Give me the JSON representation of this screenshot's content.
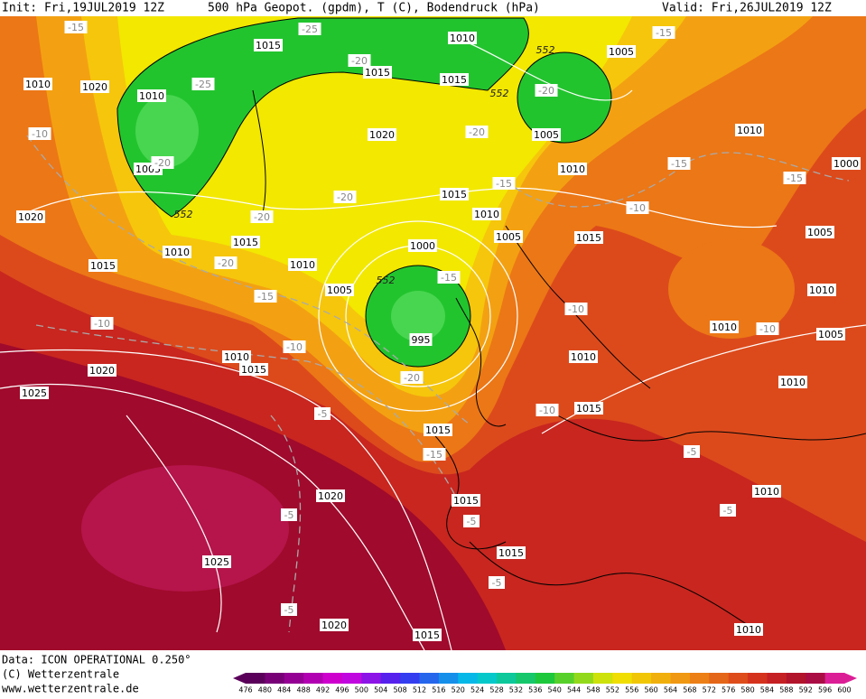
{
  "header": {
    "init": "Init: Fri,19JUL2019 12Z",
    "title": "500 hPa Geopot. (gpdm), T (C), Bodendruck (hPa)",
    "valid": "Valid: Fri,26JUL2019 12Z"
  },
  "map": {
    "labels": [
      "1015",
      "1010",
      "1005",
      "-15",
      "-15",
      "-25",
      "1010",
      "1020",
      "1010",
      "-25",
      "1015",
      "1015",
      "552",
      "552",
      "-20",
      "-20",
      "-10",
      "1020",
      "-20",
      "1005",
      "1010",
      "1005",
      "-20",
      "1010",
      "-15",
      "-15",
      "1000",
      "-15",
      "1015",
      "-20",
      "552",
      "-20",
      "1020",
      "1010",
      "-10",
      "1005",
      "1015",
      "1000",
      "1005",
      "1015",
      "1010",
      "1015",
      "-20",
      "1010",
      "552",
      "-15",
      "1005",
      "-15",
      "1010",
      "-10",
      "995",
      "-10",
      "1010",
      "-10",
      "1005",
      "-10",
      "1010",
      "1015",
      "1010",
      "-20",
      "1020",
      "1010",
      "1025",
      "-10",
      "1015",
      "-5",
      "1015",
      "-15",
      "-5",
      "1020",
      "1010",
      "1015",
      "-5",
      "-5",
      "-5",
      "1015",
      "1025",
      "-5",
      "-5",
      "1020",
      "1015",
      "1010"
    ]
  },
  "footer": {
    "data": "Data: ICON OPERATIONAL 0.250°",
    "copyright": "(C) Wetterzentrale",
    "url": "www.wetterzentrale.de"
  },
  "colorbar": {
    "ticks": [
      476,
      480,
      484,
      488,
      492,
      496,
      500,
      504,
      508,
      512,
      516,
      520,
      524,
      528,
      532,
      536,
      540,
      544,
      548,
      552,
      556,
      560,
      564,
      568,
      572,
      576,
      580,
      584,
      588,
      592,
      596,
      600
    ]
  }
}
